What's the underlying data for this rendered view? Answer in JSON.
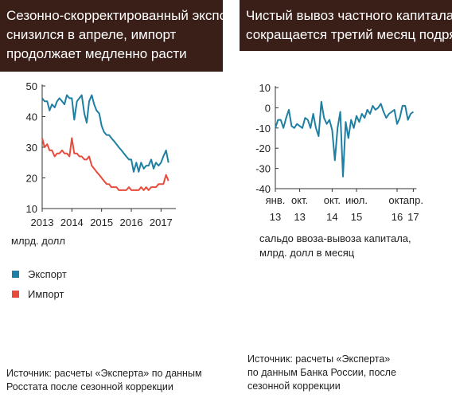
{
  "left_panel": {
    "title_lines": [
      "Сезонно-скорректированный экспорт",
      "снизился в апреле, импорт",
      "продолжает медленно расти"
    ],
    "unit_label": "млрд. долл",
    "legend": [
      {
        "name": "Экспорт",
        "color": "#1f7fa2"
      },
      {
        "name": "Импорт",
        "color": "#e84b3c"
      }
    ],
    "source_lines": [
      "Источник: расчеты «Эксперта» по данным",
      "Росстата после сезонной коррекции"
    ]
  },
  "right_panel": {
    "title_lines": [
      "Чистый вывоз частного капитала",
      "сокращается третий месяц подряд"
    ],
    "note_lines": [
      "сальдо ввоза-вывоза капитала,",
      "млрд. долл в месяц"
    ],
    "source_lines": [
      "Источник: расчеты «Эксперта»",
      "по данным Банка России, после",
      "сезонной коррекции"
    ]
  },
  "chart_data": [
    {
      "type": "line",
      "x_ticks": [
        "2013",
        "2014",
        "2015",
        "2016",
        "2017"
      ],
      "y_ticks": [
        10,
        20,
        30,
        40,
        50
      ],
      "ylim": [
        10,
        50
      ],
      "xlim": [
        2013.0,
        2017.5
      ],
      "ylabel": "млрд. долл",
      "series": [
        {
          "name": "Экспорт",
          "color": "#1f7fa2",
          "x": [
            2013.0,
            2013.08,
            2013.17,
            2013.25,
            2013.33,
            2013.42,
            2013.5,
            2013.58,
            2013.67,
            2013.75,
            2013.83,
            2013.92,
            2014.0,
            2014.08,
            2014.17,
            2014.25,
            2014.33,
            2014.42,
            2014.5,
            2014.58,
            2014.67,
            2014.75,
            2014.83,
            2014.92,
            2015.0,
            2015.08,
            2015.17,
            2015.25,
            2015.33,
            2015.42,
            2015.5,
            2015.58,
            2015.67,
            2015.75,
            2015.83,
            2015.92,
            2016.0,
            2016.08,
            2016.17,
            2016.25,
            2016.33,
            2016.42,
            2016.5,
            2016.58,
            2016.67,
            2016.75,
            2016.83,
            2016.92,
            2017.0,
            2017.08,
            2017.17,
            2017.25
          ],
          "values": [
            46,
            45,
            45,
            42,
            44,
            43,
            45,
            46,
            45,
            44,
            47,
            46,
            46,
            39,
            45,
            46,
            47,
            41,
            38,
            45,
            47,
            44,
            42,
            41,
            37,
            35,
            34,
            34,
            33,
            32,
            31,
            30,
            29,
            28,
            27,
            26,
            26,
            22,
            25,
            22,
            25,
            23,
            24,
            24,
            26,
            23,
            25,
            24,
            25,
            27,
            29,
            25
          ]
        },
        {
          "name": "Импорт",
          "color": "#e84b3c",
          "x": [
            2013.0,
            2013.08,
            2013.17,
            2013.25,
            2013.33,
            2013.42,
            2013.5,
            2013.58,
            2013.67,
            2013.75,
            2013.83,
            2013.92,
            2014.0,
            2014.08,
            2014.17,
            2014.25,
            2014.33,
            2014.42,
            2014.5,
            2014.58,
            2014.67,
            2014.75,
            2014.83,
            2014.92,
            2015.0,
            2015.08,
            2015.17,
            2015.25,
            2015.33,
            2015.42,
            2015.5,
            2015.58,
            2015.67,
            2015.75,
            2015.83,
            2015.92,
            2016.0,
            2016.08,
            2016.17,
            2016.25,
            2016.33,
            2016.42,
            2016.5,
            2016.58,
            2016.67,
            2016.75,
            2016.83,
            2016.92,
            2017.0,
            2017.08,
            2017.17,
            2017.25
          ],
          "values": [
            33,
            30,
            31,
            29,
            29,
            27,
            28,
            28,
            29,
            28,
            28,
            27,
            33,
            28,
            28,
            27,
            27,
            26,
            26,
            27,
            24,
            23,
            22,
            21,
            20,
            19,
            18,
            18,
            17,
            17,
            17,
            16,
            16,
            16,
            16,
            17,
            16,
            16,
            16,
            16,
            17,
            16,
            17,
            16,
            17,
            17,
            17,
            18,
            18,
            18,
            21,
            19
          ]
        }
      ]
    },
    {
      "type": "line",
      "x_ticks": [
        {
          "month": "янв.",
          "year": "13"
        },
        {
          "month": "окт.",
          "year": "13"
        },
        {
          "month": "окт.",
          "year": "14"
        },
        {
          "month": "июл.",
          "year": "15"
        },
        {
          "month": "окт.",
          "year": "16"
        },
        {
          "month": "апр.",
          "year": "17"
        }
      ],
      "y_ticks": [
        10,
        0,
        -10,
        -20,
        -30,
        -40
      ],
      "ylim": [
        -40,
        10
      ],
      "ylabel": "млрд. долл в месяц",
      "series": [
        {
          "color": "#1f7fa2",
          "x": [
            0,
            1,
            2,
            3,
            4,
            5,
            6,
            7,
            8,
            9,
            10,
            11,
            12,
            13,
            14,
            15,
            16,
            17,
            18,
            19,
            20,
            21,
            22,
            23,
            24,
            25,
            26,
            27,
            28,
            29,
            30,
            31,
            32,
            33,
            34,
            35,
            36,
            37,
            38,
            39,
            40,
            41,
            42,
            43,
            44,
            45,
            46,
            47,
            48,
            49,
            50,
            51
          ],
          "values": [
            -10,
            -6,
            -6,
            -10,
            -5,
            -1,
            -9,
            -10,
            -8,
            -9,
            -10,
            -5,
            -6,
            -10,
            -3,
            -10,
            -14,
            3,
            -5,
            -8,
            -6,
            -11,
            -26,
            -10,
            -2,
            -34,
            -7,
            -15,
            -6,
            -10,
            -4,
            -7,
            -3,
            -5,
            -1,
            -3,
            1,
            -1,
            0,
            2,
            -2,
            -5,
            -3,
            -2,
            -1,
            -8,
            -5,
            1,
            1,
            -6,
            -3,
            -2
          ]
        }
      ]
    }
  ]
}
